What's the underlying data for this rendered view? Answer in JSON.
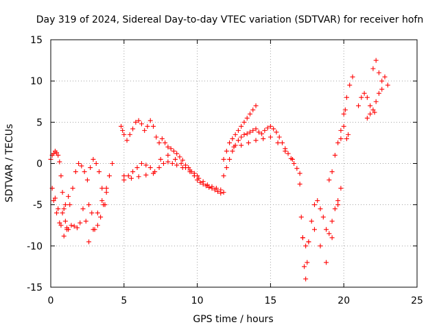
{
  "chart_data": {
    "type": "scatter",
    "title": "Day 319 of 2024, Sidereal Day-to-day VTEC variation (SDTVAR) for receiver hofn",
    "xlabel": "GPS time / hours",
    "ylabel": "SDTVAR / TECUs",
    "xlim": [
      0,
      25
    ],
    "ylim": [
      -15,
      15
    ],
    "xticks": [
      0,
      5,
      10,
      15,
      20,
      25
    ],
    "yticks": [
      -15,
      -10,
      -5,
      0,
      5,
      10,
      15
    ],
    "grid": true,
    "marker": "+",
    "color": "#ff0000",
    "series": [
      {
        "name": "SDTVAR",
        "x": [
          0.0,
          0.1,
          0.2,
          0.3,
          0.4,
          0.5,
          0.6,
          0.7,
          0.8,
          0.9,
          1.0,
          1.1,
          1.2,
          1.4,
          1.6,
          1.8,
          2.0,
          2.2,
          2.4,
          2.6,
          2.8,
          3.0,
          3.2,
          3.4,
          3.6,
          3.8,
          4.0,
          4.2,
          0.1,
          0.3,
          0.5,
          0.7,
          0.9,
          1.1,
          1.3,
          1.5,
          1.7,
          1.9,
          2.1,
          2.3,
          2.5,
          2.7,
          2.9,
          3.1,
          3.3,
          3.5,
          3.7,
          0.2,
          0.4,
          0.6,
          0.8,
          1.0,
          1.2,
          2.6,
          2.9,
          3.2,
          3.5,
          3.8,
          4.8,
          4.9,
          5.0,
          5.2,
          5.4,
          5.6,
          5.8,
          6.0,
          6.2,
          6.4,
          6.6,
          6.8,
          7.0,
          7.2,
          7.4,
          7.6,
          7.8,
          8.0,
          8.2,
          8.4,
          8.6,
          8.8,
          9.0,
          9.2,
          9.4,
          9.6,
          9.8,
          10.0,
          10.2,
          10.4,
          10.6,
          10.8,
          11.0,
          11.2,
          11.4,
          11.6,
          11.8,
          5.0,
          5.3,
          5.6,
          5.9,
          6.2,
          6.5,
          6.8,
          7.1,
          7.4,
          7.7,
          8.0,
          8.3,
          8.6,
          8.9,
          9.2,
          9.5,
          9.8,
          10.1,
          10.4,
          10.7,
          11.0,
          11.3,
          11.6,
          5.0,
          5.5,
          6.0,
          6.5,
          7.0,
          7.5,
          8.0,
          8.5,
          9.0,
          9.5,
          10.0,
          11.8,
          12.0,
          12.2,
          12.4,
          12.6,
          12.8,
          13.0,
          13.2,
          13.4,
          13.6,
          13.8,
          14.0,
          14.2,
          14.4,
          14.6,
          14.8,
          15.0,
          15.2,
          15.4,
          15.6,
          15.8,
          16.0,
          16.2,
          16.4,
          16.6,
          16.8,
          17.0,
          11.8,
          12.0,
          12.2,
          12.4,
          12.6,
          12.8,
          13.0,
          13.2,
          13.4,
          13.6,
          13.8,
          14.0,
          12.5,
          13.0,
          13.5,
          14.0,
          14.5,
          15.0,
          15.5,
          16.0,
          16.5,
          17.0,
          17.1,
          17.2,
          17.3,
          17.4,
          17.5,
          17.6,
          17.8,
          18.0,
          18.2,
          18.4,
          18.6,
          18.8,
          19.0,
          19.2,
          19.4,
          19.6,
          19.8,
          17.2,
          17.4,
          17.6,
          18.0,
          18.4,
          18.8,
          19.2,
          19.6,
          19.0,
          19.2,
          19.4,
          19.6,
          19.8,
          20.0,
          20.2,
          20.4,
          20.6,
          19.8,
          20.0,
          20.1,
          20.2,
          20.3,
          21.0,
          21.2,
          21.4,
          21.6,
          21.8,
          22.0,
          22.2,
          22.4,
          22.6,
          22.8,
          23.0,
          22.0,
          22.2,
          22.4,
          22.6,
          21.6,
          21.8,
          22.1
        ],
        "y": [
          0.5,
          1.0,
          1.2,
          1.5,
          1.3,
          1.0,
          0.2,
          -1.5,
          -3.5,
          -5.5,
          -7.0,
          -7.8,
          -8.0,
          -7.5,
          -7.6,
          -7.8,
          -7.2,
          -5.5,
          -7.0,
          -5.0,
          -6.0,
          -8.0,
          -7.5,
          -6.5,
          -5.0,
          -3.5,
          -1.5,
          0.0,
          -3.0,
          -4.2,
          -5.5,
          -7.5,
          -8.8,
          -8.0,
          -5.0,
          -3.0,
          -1.0,
          0.0,
          -0.3,
          -1.0,
          -2.0,
          -0.5,
          0.5,
          0.0,
          -1.0,
          -3.0,
          -5.0,
          -4.5,
          -6.0,
          -7.2,
          -6.0,
          -5.0,
          -4.0,
          -9.5,
          -8.0,
          -6.0,
          -4.5,
          -3.0,
          4.5,
          4.0,
          3.5,
          2.8,
          3.5,
          4.2,
          5.0,
          5.2,
          4.8,
          4.0,
          4.5,
          5.2,
          4.5,
          3.2,
          2.5,
          3.0,
          2.5,
          2.0,
          1.8,
          1.5,
          1.2,
          0.8,
          0.4,
          -0.2,
          -0.5,
          -1.0,
          -1.5,
          -2.0,
          -2.3,
          -2.5,
          -2.7,
          -2.9,
          -3.0,
          -3.2,
          -3.4,
          -3.6,
          -3.5,
          -2.0,
          -1.5,
          -1.0,
          -0.5,
          0.0,
          -0.2,
          -0.5,
          -1.0,
          -0.5,
          0.0,
          0.2,
          0.0,
          -0.2,
          0.0,
          -0.5,
          -0.8,
          -1.2,
          -1.8,
          -2.2,
          -2.6,
          -2.8,
          -3.0,
          -3.2,
          -1.5,
          -1.8,
          -1.6,
          -1.4,
          -1.2,
          0.5,
          1.0,
          0.5,
          -0.5,
          -1.0,
          -1.5,
          -1.5,
          -0.5,
          0.5,
          1.5,
          2.2,
          2.8,
          3.2,
          3.5,
          3.6,
          3.8,
          4.0,
          4.2,
          3.8,
          3.6,
          4.0,
          4.3,
          4.5,
          4.2,
          3.8,
          3.2,
          2.5,
          1.8,
          1.2,
          0.6,
          0.0,
          -0.6,
          -1.2,
          0.5,
          1.5,
          2.5,
          3.0,
          3.5,
          4.0,
          4.5,
          5.0,
          5.5,
          6.0,
          6.5,
          7.0,
          2.0,
          2.2,
          2.5,
          2.8,
          3.0,
          3.2,
          2.5,
          1.5,
          0.5,
          -2.5,
          -6.5,
          -9.0,
          -12.5,
          -14.0,
          -12.0,
          -9.5,
          -7.0,
          -5.0,
          -4.5,
          -5.5,
          -6.5,
          -8.0,
          -8.5,
          -7.0,
          -5.5,
          -4.5,
          -3.0,
          -9.0,
          -10.0,
          -9.5,
          -8.0,
          -10.0,
          -12.0,
          -9.0,
          -5.0,
          -2.0,
          -1.0,
          1.0,
          2.5,
          4.0,
          6.0,
          8.0,
          9.5,
          10.5,
          3.0,
          4.5,
          6.5,
          3.0,
          3.5,
          7.0,
          8.0,
          8.5,
          8.0,
          7.0,
          6.5,
          7.5,
          8.5,
          9.0,
          10.5,
          9.5,
          11.5,
          12.5,
          11.0,
          10.0,
          5.5,
          6.0,
          6.2
        ]
      }
    ]
  }
}
